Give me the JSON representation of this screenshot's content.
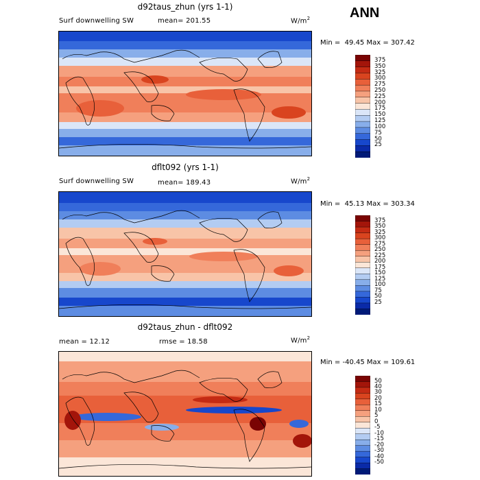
{
  "season": "ANN",
  "panels": [
    {
      "title": "d92taus_zhun (yrs 1-1)",
      "left_label": "Surf downwelling SW",
      "stat_label": "mean= 201.55",
      "units": "W/m",
      "units_sup": "2",
      "minmax": "Min =  49.45 Max = 307.42"
    },
    {
      "title": "dflt092 (yrs 1-1)",
      "left_label": "Surf downwelling SW",
      "stat_label": "mean= 189.43",
      "units": "W/m",
      "units_sup": "2",
      "minmax": "Min =  45.13 Max = 303.34"
    },
    {
      "title": "d92taus_zhun - dflt092",
      "left_label": "mean =  12.12",
      "stat_label": "rmse =  18.58",
      "units": "W/m",
      "units_sup": "2",
      "minmax": "Min = -40.45 Max = 109.61"
    }
  ],
  "colorbars": [
    {
      "labels": [
        "375",
        "350",
        "325",
        "300",
        "275",
        "250",
        "225",
        "200",
        "175",
        "150",
        "125",
        "100",
        "75",
        "50",
        "25"
      ],
      "colors": [
        "#7a0403",
        "#a3150a",
        "#c42b14",
        "#d9441f",
        "#e8603a",
        "#f07f5a",
        "#f5a07e",
        "#f8c4a8",
        "#fbe6d8",
        "#dbe6f8",
        "#b3ccf2",
        "#88aeea",
        "#5d8ce2",
        "#3568da",
        "#1747cc",
        "#0a2aa8",
        "#001a78"
      ]
    },
    {
      "labels": [
        "375",
        "350",
        "325",
        "300",
        "275",
        "250",
        "225",
        "200",
        "175",
        "150",
        "125",
        "100",
        "75",
        "50",
        "25"
      ],
      "colors": [
        "#7a0403",
        "#a3150a",
        "#c42b14",
        "#d9441f",
        "#e8603a",
        "#f07f5a",
        "#f5a07e",
        "#f8c4a8",
        "#fbe6d8",
        "#dbe6f8",
        "#b3ccf2",
        "#88aeea",
        "#5d8ce2",
        "#3568da",
        "#1747cc",
        "#0a2aa8",
        "#001a78"
      ]
    },
    {
      "labels": [
        "50",
        "40",
        "30",
        "20",
        "15",
        "10",
        "5",
        "0",
        "-5",
        "-10",
        "-15",
        "-20",
        "-30",
        "-40",
        "-50"
      ],
      "colors": [
        "#7a0403",
        "#a3150a",
        "#c42b14",
        "#d9441f",
        "#e8603a",
        "#f07f5a",
        "#f5a07e",
        "#f8c4a8",
        "#fbe6d8",
        "#dbe6f8",
        "#b3ccf2",
        "#88aeea",
        "#5d8ce2",
        "#3568da",
        "#1747cc",
        "#0a2aa8",
        "#001a78"
      ]
    }
  ],
  "chart_data": [
    {
      "type": "heatmap",
      "title": "d92taus_zhun (yrs 1-1)",
      "variable": "Surf downwelling SW",
      "units": "W/m2",
      "mean": 201.55,
      "min": 49.45,
      "max": 307.42,
      "contour_levels": [
        25,
        50,
        75,
        100,
        125,
        150,
        175,
        200,
        225,
        250,
        275,
        300,
        325,
        350,
        375
      ]
    },
    {
      "type": "heatmap",
      "title": "dflt092 (yrs 1-1)",
      "variable": "Surf downwelling SW",
      "units": "W/m2",
      "mean": 189.43,
      "min": 45.13,
      "max": 303.34,
      "contour_levels": [
        25,
        50,
        75,
        100,
        125,
        150,
        175,
        200,
        225,
        250,
        275,
        300,
        325,
        350,
        375
      ]
    },
    {
      "type": "heatmap",
      "title": "d92taus_zhun - dflt092",
      "units": "W/m2",
      "mean": 12.12,
      "rmse": 18.58,
      "min": -40.45,
      "max": 109.61,
      "contour_levels": [
        -50,
        -40,
        -30,
        -20,
        -15,
        -10,
        -5,
        0,
        5,
        10,
        15,
        20,
        30,
        40,
        50
      ]
    }
  ]
}
